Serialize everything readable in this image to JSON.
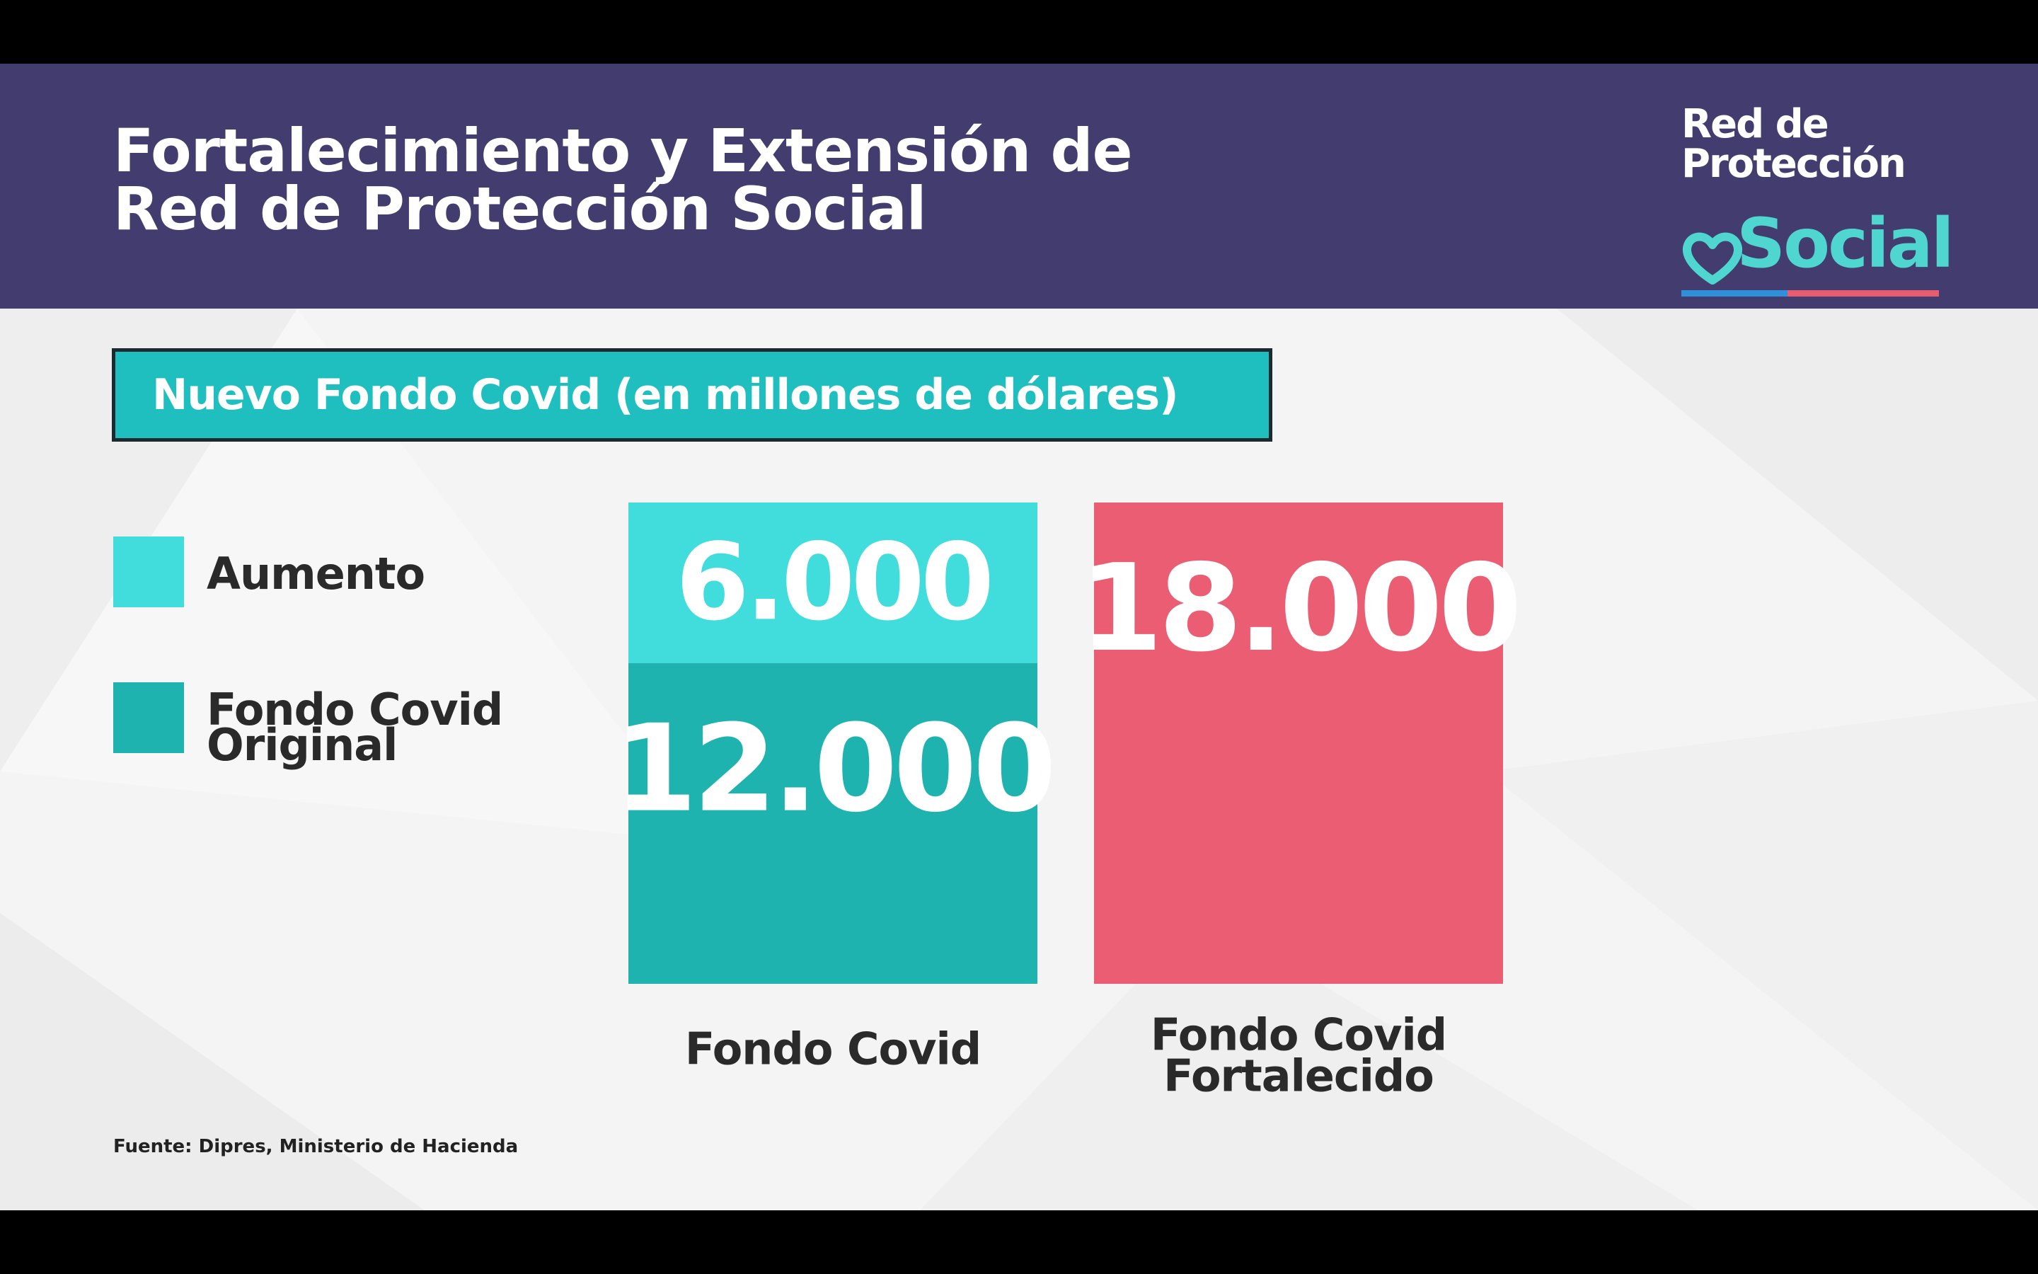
{
  "header": {
    "title_line1": "Fortalecimiento y Extensión de",
    "title_line2": "Red de Protección Social",
    "background_color": "#433c6e"
  },
  "logo": {
    "line1": "Red de",
    "line2": "Protección",
    "line3": "Social",
    "accent_color": "#4fd6d0"
  },
  "chart_title": "Nuevo Fondo Covid (en millones de dólares)",
  "legend": [
    {
      "label": "Aumento",
      "color": "#41dcdc"
    },
    {
      "label_line1": "Fondo Covid",
      "label_line2": "Original",
      "color": "#1fb3b0"
    }
  ],
  "source": "Fuente: Dipres, Ministerio de Hacienda",
  "chart_data": {
    "type": "bar",
    "stacked": true,
    "categories": [
      "Fondo Covid",
      "Fondo Covid Fortalecido"
    ],
    "category_labels": [
      [
        "Fondo Covid"
      ],
      [
        "Fondo Covid",
        "Fortalecido"
      ]
    ],
    "series": [
      {
        "name": "Fondo Covid Original",
        "color": "#1fb3b0",
        "values": [
          12000,
          null
        ],
        "labels": [
          "12.000",
          null
        ]
      },
      {
        "name": "Aumento",
        "color": "#41dcdc",
        "values": [
          6000,
          null
        ],
        "labels": [
          "6.000",
          null
        ]
      },
      {
        "name": "Fondo Covid Fortalecido",
        "color": "#eb5d73",
        "values": [
          null,
          18000
        ],
        "labels": [
          null,
          "18.000"
        ]
      }
    ],
    "ylim": [
      0,
      18000
    ],
    "title": "Nuevo Fondo Covid (en millones de dólares)",
    "xlabel": "",
    "ylabel": "",
    "grid": false,
    "legend_position": "left"
  }
}
